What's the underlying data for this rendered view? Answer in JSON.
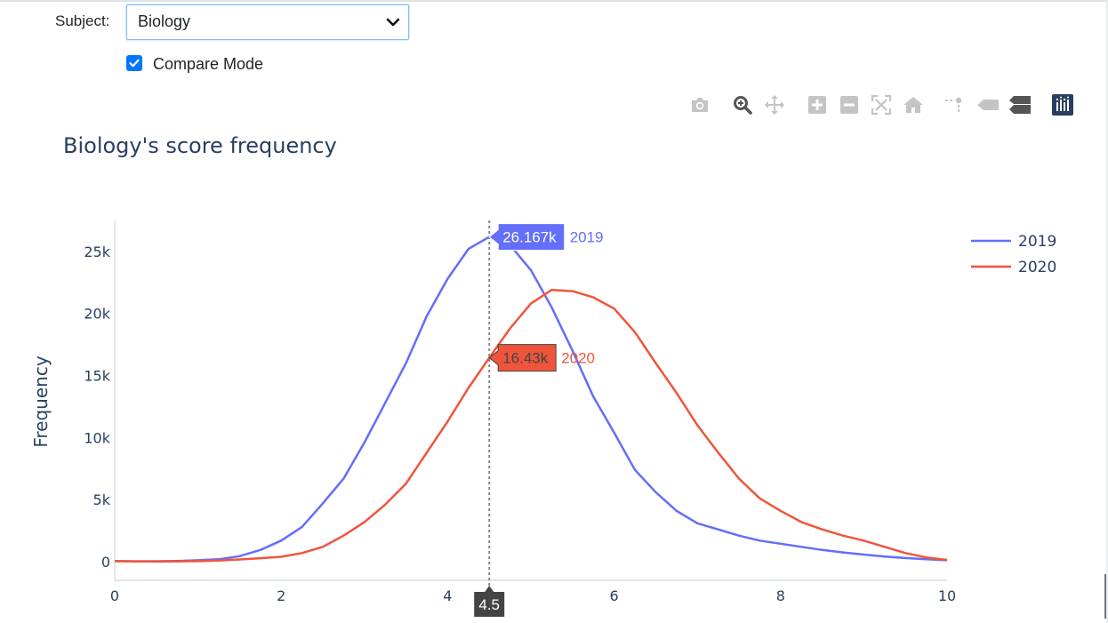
{
  "controls": {
    "subject_label": "Subject:",
    "subject_value": "Biology",
    "compare_label": "Compare Mode",
    "compare_checked": true
  },
  "modebar": [
    {
      "name": "camera-icon"
    },
    {
      "name": "zoom-icon"
    },
    {
      "name": "pan-icon"
    },
    {
      "name": "zoom-in-icon"
    },
    {
      "name": "zoom-out-icon"
    },
    {
      "name": "autoscale-icon"
    },
    {
      "name": "reset-axes-icon"
    },
    {
      "name": "spike-lines-icon"
    },
    {
      "name": "hover-closest-icon"
    },
    {
      "name": "hover-compare-icon"
    },
    {
      "name": "plotly-logo-icon"
    }
  ],
  "chart_data": {
    "type": "line",
    "title": "Biology's score frequency",
    "ylabel": "Frequency",
    "xlabel": "",
    "xlim": [
      0,
      10
    ],
    "ylim": [
      -1500,
      27500
    ],
    "xticks": [
      0,
      2,
      4,
      6,
      8,
      10
    ],
    "xtick_labels": [
      "0",
      "2",
      "4",
      "6",
      "8",
      "10"
    ],
    "yticks": [
      0,
      5000,
      10000,
      15000,
      20000,
      25000
    ],
    "ytick_labels": [
      "0",
      "5k",
      "10k",
      "15k",
      "20k",
      "25k"
    ],
    "legend_position": "top-right",
    "x": [
      0,
      0.25,
      0.5,
      0.75,
      1,
      1.25,
      1.5,
      1.75,
      2,
      2.25,
      2.5,
      2.75,
      3,
      3.25,
      3.5,
      3.75,
      4,
      4.25,
      4.5,
      4.75,
      5,
      5.25,
      5.5,
      5.75,
      6,
      6.25,
      6.5,
      6.75,
      7,
      7.25,
      7.5,
      7.75,
      8,
      8.25,
      8.5,
      8.75,
      9,
      9.25,
      9.5,
      9.75,
      10
    ],
    "series": [
      {
        "name": "2019",
        "color": "#636efa",
        "values": [
          50,
          30,
          40,
          60,
          120,
          200,
          450,
          950,
          1700,
          2800,
          4700,
          6700,
          9600,
          12800,
          16000,
          19800,
          22800,
          25200,
          26167,
          25500,
          23500,
          20500,
          17000,
          13300,
          10400,
          7400,
          5600,
          4100,
          3100,
          2600,
          2100,
          1700,
          1450,
          1200,
          950,
          750,
          580,
          420,
          300,
          200,
          120
        ]
      },
      {
        "name": "2020",
        "color": "#ef553b",
        "values": [
          50,
          30,
          20,
          30,
          50,
          100,
          180,
          280,
          400,
          700,
          1200,
          2100,
          3200,
          4600,
          6300,
          8800,
          11300,
          14000,
          16430,
          18800,
          20800,
          21900,
          21800,
          21300,
          20400,
          18500,
          16000,
          13600,
          11000,
          8800,
          6700,
          5100,
          4100,
          3200,
          2600,
          2100,
          1700,
          1200,
          700,
          350,
          150
        ]
      }
    ],
    "hover": {
      "x_label": "4.5",
      "x": 4.5,
      "labels": [
        {
          "series": "2019",
          "value_text": "26.167k",
          "name": "2019",
          "value": 26167
        },
        {
          "series": "2020",
          "value_text": "16.43k",
          "name": "2020",
          "value": 16430
        }
      ]
    }
  }
}
